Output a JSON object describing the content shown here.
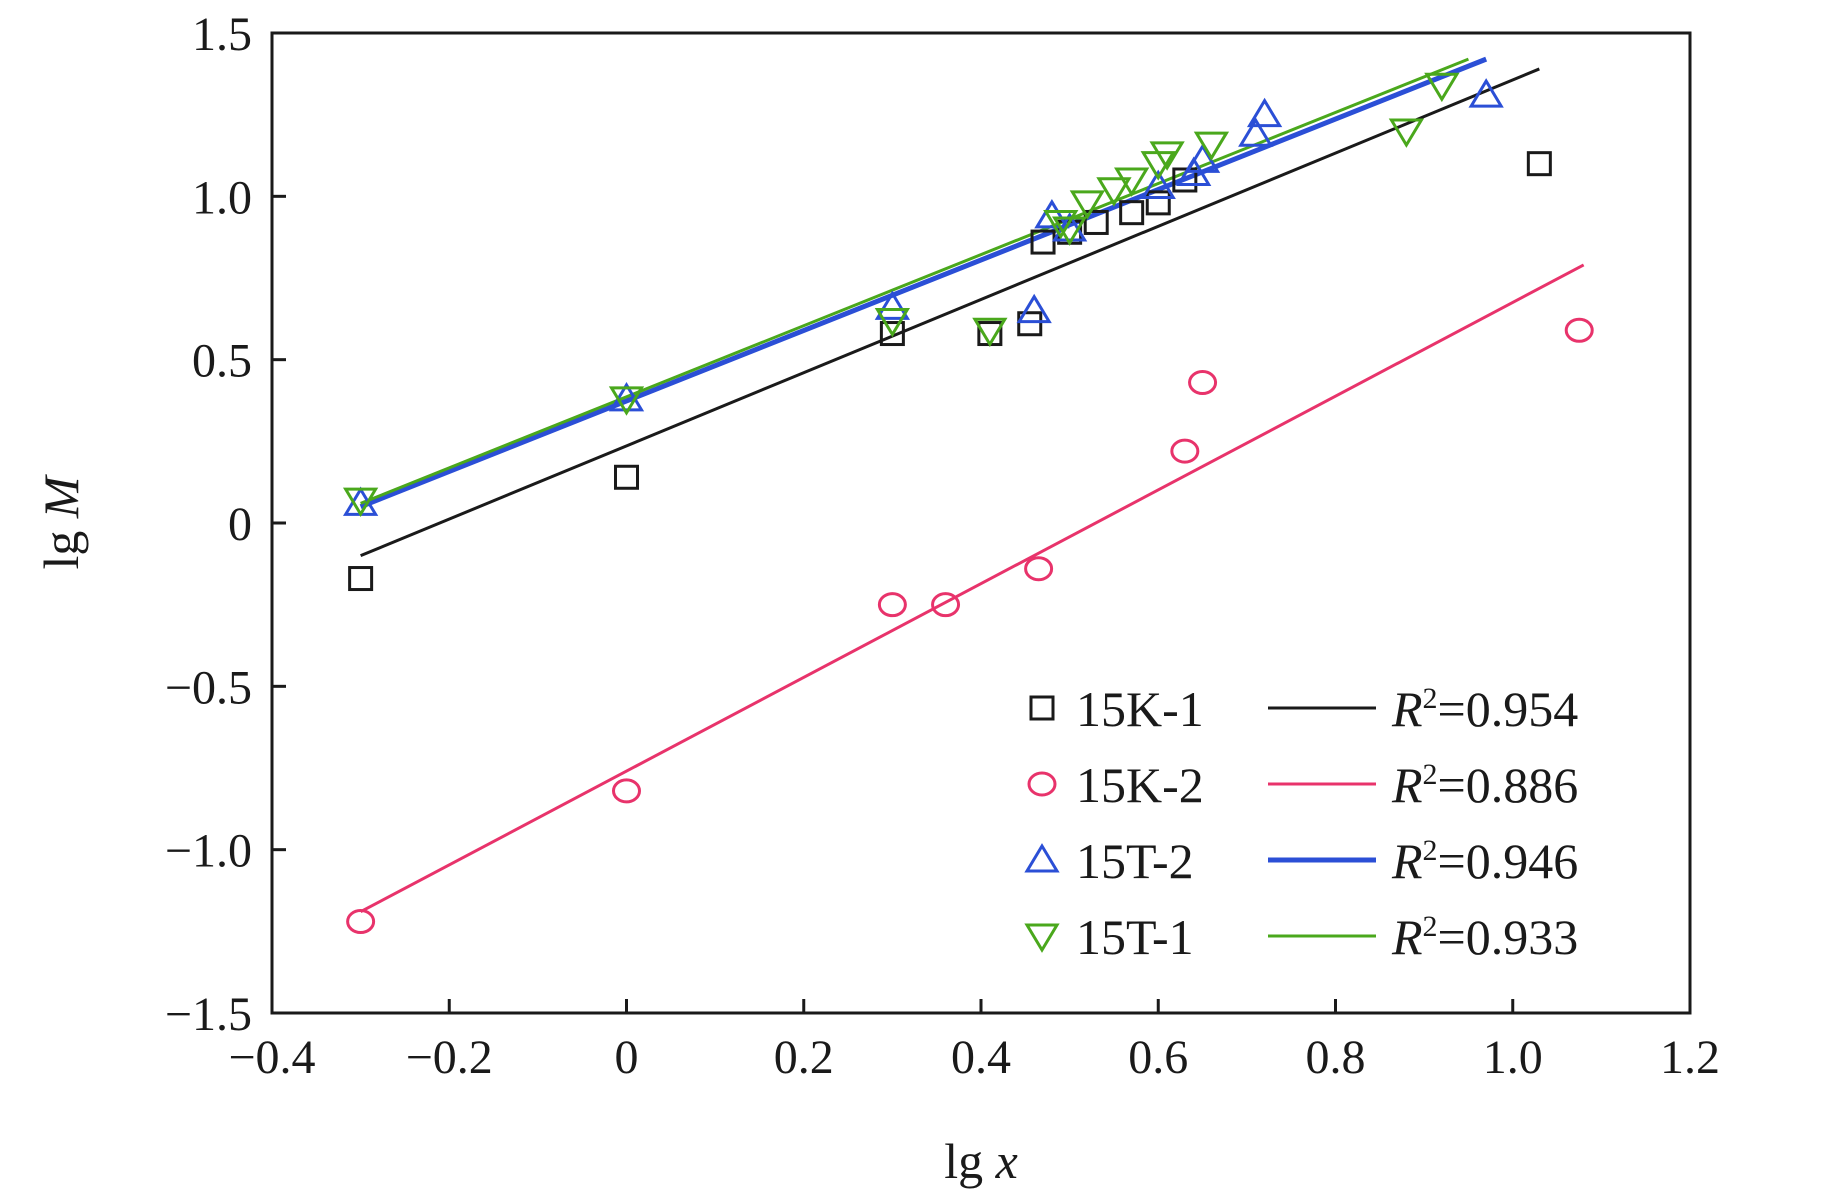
{
  "chart_data": {
    "type": "scatter",
    "xlabel": {
      "prefix": "lg ",
      "var": "x"
    },
    "ylabel": {
      "prefix": "lg ",
      "var": "M"
    },
    "xlim": [
      -0.4,
      1.2
    ],
    "ylim": [
      -1.5,
      1.5
    ],
    "xticks": [
      {
        "value": -0.4,
        "label": "−0.4"
      },
      {
        "value": -0.2,
        "label": "−0.2"
      },
      {
        "value": 0,
        "label": "0"
      },
      {
        "value": 0.2,
        "label": "0.2"
      },
      {
        "value": 0.4,
        "label": "0.4"
      },
      {
        "value": 0.6,
        "label": "0.6"
      },
      {
        "value": 0.8,
        "label": "0.8"
      },
      {
        "value": 1.0,
        "label": "1.0"
      },
      {
        "value": 1.2,
        "label": "1.2"
      }
    ],
    "yticks": [
      {
        "value": -1.5,
        "label": "−1.5"
      },
      {
        "value": -1.0,
        "label": "−1.0"
      },
      {
        "value": -0.5,
        "label": "−0.5"
      },
      {
        "value": 0,
        "label": "0"
      },
      {
        "value": 0.5,
        "label": "0.5"
      },
      {
        "value": 1.0,
        "label": "1.0"
      },
      {
        "value": 1.5,
        "label": "1.5"
      }
    ],
    "grid": false,
    "legend_position": "bottom-right",
    "series": [
      {
        "name": "15K-1",
        "marker": "square",
        "color": "#1a1a1a",
        "r2_label": "=0.954",
        "fit": {
          "x": [
            -0.3,
            1.03
          ],
          "y": [
            -0.1,
            1.39
          ]
        },
        "points": [
          {
            "x": -0.3,
            "y": -0.17
          },
          {
            "x": 0.0,
            "y": 0.14
          },
          {
            "x": 0.3,
            "y": 0.58
          },
          {
            "x": 0.41,
            "y": 0.58
          },
          {
            "x": 0.455,
            "y": 0.61
          },
          {
            "x": 0.47,
            "y": 0.86
          },
          {
            "x": 0.5,
            "y": 0.89
          },
          {
            "x": 0.53,
            "y": 0.92
          },
          {
            "x": 0.57,
            "y": 0.95
          },
          {
            "x": 0.6,
            "y": 0.98
          },
          {
            "x": 0.63,
            "y": 1.05
          },
          {
            "x": 1.03,
            "y": 1.1
          }
        ]
      },
      {
        "name": "15K-2",
        "marker": "circle",
        "color": "#e8336b",
        "r2_label": "=0.886",
        "fit": {
          "x": [
            -0.3,
            1.08
          ],
          "y": [
            -1.19,
            0.79
          ]
        },
        "points": [
          {
            "x": -0.3,
            "y": -1.22
          },
          {
            "x": 0.0,
            "y": -0.82
          },
          {
            "x": 0.3,
            "y": -0.25
          },
          {
            "x": 0.36,
            "y": -0.25
          },
          {
            "x": 0.465,
            "y": -0.14
          },
          {
            "x": 0.63,
            "y": 0.22
          },
          {
            "x": 0.65,
            "y": 0.43
          },
          {
            "x": 1.075,
            "y": 0.59
          }
        ]
      },
      {
        "name": "15T-2",
        "marker": "triangle-up",
        "color": "#2b4fd6",
        "r2_label": "=0.946",
        "fit": {
          "x": [
            -0.3,
            0.97
          ],
          "y": [
            0.05,
            1.42
          ]
        },
        "points": [
          {
            "x": -0.3,
            "y": 0.06
          },
          {
            "x": 0.0,
            "y": 0.38
          },
          {
            "x": 0.3,
            "y": 0.66
          },
          {
            "x": 0.46,
            "y": 0.65
          },
          {
            "x": 0.48,
            "y": 0.94
          },
          {
            "x": 0.5,
            "y": 0.9
          },
          {
            "x": 0.6,
            "y": 1.03
          },
          {
            "x": 0.64,
            "y": 1.07
          },
          {
            "x": 0.65,
            "y": 1.11
          },
          {
            "x": 0.71,
            "y": 1.19
          },
          {
            "x": 0.72,
            "y": 1.25
          },
          {
            "x": 0.97,
            "y": 1.31
          }
        ]
      },
      {
        "name": "15T-1",
        "marker": "triangle-down",
        "color": "#4aa81c",
        "r2_label": "=0.933",
        "fit": {
          "x": [
            -0.3,
            0.95
          ],
          "y": [
            0.06,
            1.42
          ]
        },
        "points": [
          {
            "x": -0.3,
            "y": 0.07
          },
          {
            "x": 0.0,
            "y": 0.38
          },
          {
            "x": 0.3,
            "y": 0.62
          },
          {
            "x": 0.41,
            "y": 0.59
          },
          {
            "x": 0.49,
            "y": 0.92
          },
          {
            "x": 0.5,
            "y": 0.9
          },
          {
            "x": 0.52,
            "y": 0.98
          },
          {
            "x": 0.55,
            "y": 1.02
          },
          {
            "x": 0.57,
            "y": 1.05
          },
          {
            "x": 0.6,
            "y": 1.1
          },
          {
            "x": 0.61,
            "y": 1.13
          },
          {
            "x": 0.66,
            "y": 1.16
          },
          {
            "x": 0.88,
            "y": 1.2
          },
          {
            "x": 0.92,
            "y": 1.34
          }
        ]
      }
    ]
  }
}
